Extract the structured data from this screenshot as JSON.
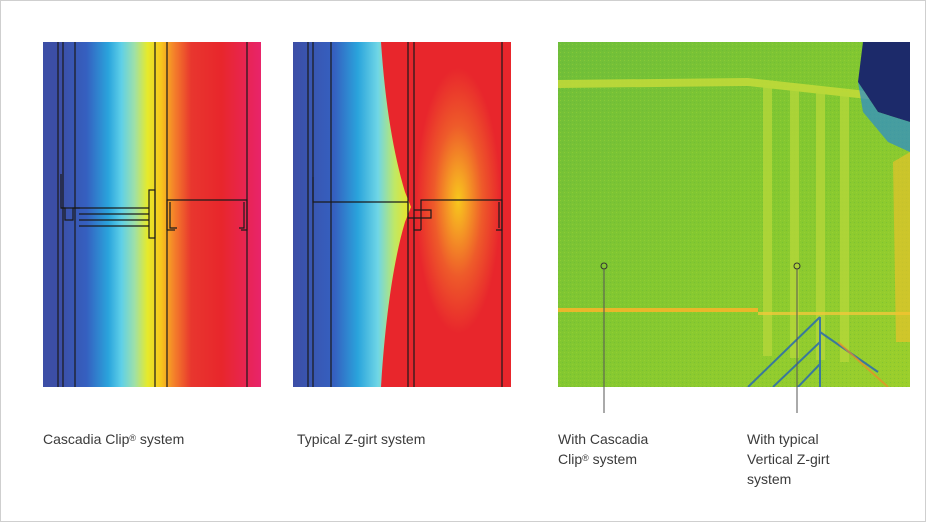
{
  "captions": {
    "clip_system": {
      "text": "Cascadia Clip",
      "mark": "®",
      "suffix": " system"
    },
    "zgirt_system": {
      "text": "Typical Z-girt system"
    },
    "ir_left": {
      "line1": "With Cascadia",
      "line2_text": "Clip",
      "mark": "®",
      "line2_suffix": " system"
    },
    "ir_right": {
      "line1": "With typical",
      "line2": "Vertical Z-girt",
      "line3": "system"
    }
  },
  "colors": {
    "cold": "#3d4fa8",
    "cyan": "#35c8e6",
    "yellow": "#f4e11a",
    "orange": "#f59a23",
    "hot": "#e8262c",
    "magenta": "#e8246a",
    "ir_green": "#78c432",
    "border": "#cfcfcf",
    "text": "#3a3a3a"
  },
  "icons": {
    "leader_marker": "circle-marker-icon"
  }
}
